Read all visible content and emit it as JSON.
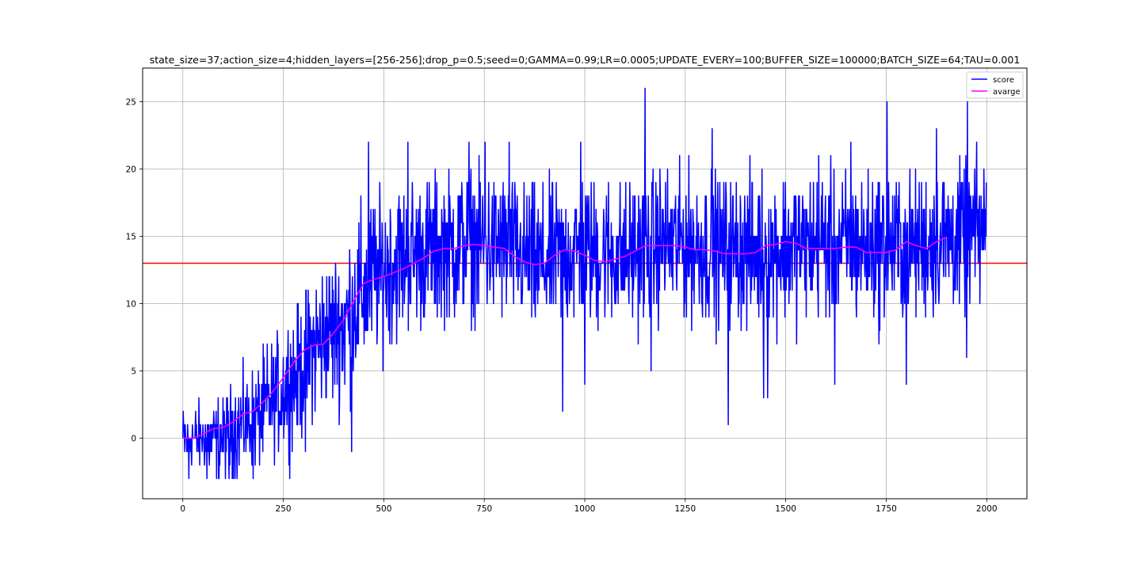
{
  "chart_data": {
    "type": "line",
    "title": "state_size=37;action_size=4;hidden_layers=[256-256];drop_p=0.5;seed=0;GAMMA=0.99;LR=0.0005;UPDATE_EVERY=100;BUFFER_SIZE=100000;BATCH_SIZE=64;TAU=0.001",
    "xlabel": "",
    "ylabel": "",
    "xlim": [
      -100,
      2100
    ],
    "ylim": [
      -4.5,
      27.5
    ],
    "x_ticks": [
      0,
      250,
      500,
      750,
      1000,
      1250,
      1500,
      1750,
      2000
    ],
    "y_ticks": [
      0,
      5,
      10,
      15,
      20,
      25
    ],
    "grid": true,
    "legend": {
      "placement": "top-right"
    },
    "threshold": {
      "y": 13,
      "color": "#ff0000"
    },
    "series": [
      {
        "name": "score",
        "color": "#0000ff",
        "x_start": 0,
        "x_end": 1999,
        "style": "noisy per-episode scores",
        "trend": [
          [
            0,
            0
          ],
          [
            100,
            0
          ],
          [
            200,
            2
          ],
          [
            280,
            4.5
          ],
          [
            330,
            7
          ],
          [
            400,
            8.5
          ],
          [
            450,
            11
          ],
          [
            500,
            12.5
          ],
          [
            560,
            13.5
          ],
          [
            700,
            14.5
          ],
          [
            800,
            14.3
          ],
          [
            880,
            13
          ],
          [
            1000,
            14
          ],
          [
            1100,
            13.5
          ],
          [
            1200,
            14.5
          ],
          [
            1400,
            14
          ],
          [
            1550,
            14.3
          ],
          [
            1700,
            14.3
          ],
          [
            1800,
            14.3
          ],
          [
            1950,
            15
          ],
          [
            1999,
            15.5
          ]
        ],
        "spread": [
          [
            0,
            1.5
          ],
          [
            200,
            3
          ],
          [
            350,
            4
          ],
          [
            450,
            4.5
          ],
          [
            600,
            4
          ],
          [
            2000,
            4
          ]
        ],
        "extremes": [
          [
            15,
            -3
          ],
          [
            60,
            -3
          ],
          [
            90,
            -3
          ],
          [
            115,
            -3
          ],
          [
            175,
            -3
          ],
          [
            305,
            -1
          ],
          [
            420,
            -1
          ],
          [
            462,
            22
          ],
          [
            560,
            22
          ],
          [
            712,
            22
          ],
          [
            752,
            22
          ],
          [
            812,
            22
          ],
          [
            945,
            2
          ],
          [
            990,
            22
          ],
          [
            1000,
            4
          ],
          [
            1150,
            26
          ],
          [
            1165,
            5
          ],
          [
            1317,
            23
          ],
          [
            1357,
            1
          ],
          [
            1445,
            3
          ],
          [
            1455,
            3
          ],
          [
            1582,
            21
          ],
          [
            1622,
            4
          ],
          [
            1662,
            22
          ],
          [
            1752,
            25
          ],
          [
            1800,
            4
          ],
          [
            1875,
            23
          ],
          [
            1950,
            6
          ],
          [
            1952,
            25
          ]
        ],
        "y_min": -3,
        "y_max": 26
      },
      {
        "name": "avarge",
        "color": "#ff00ff",
        "points": [
          [
            0,
            0
          ],
          [
            25,
            0
          ],
          [
            50,
            0.3
          ],
          [
            75,
            0.7
          ],
          [
            100,
            0.8
          ],
          [
            125,
            1.2
          ],
          [
            150,
            1.8
          ],
          [
            175,
            2
          ],
          [
            200,
            2.7
          ],
          [
            225,
            3.5
          ],
          [
            250,
            4.5
          ],
          [
            275,
            5.6
          ],
          [
            300,
            6.5
          ],
          [
            325,
            6.9
          ],
          [
            350,
            7
          ],
          [
            375,
            7.8
          ],
          [
            400,
            8.8
          ],
          [
            425,
            10.2
          ],
          [
            450,
            11.5
          ],
          [
            475,
            11.8
          ],
          [
            500,
            12
          ],
          [
            525,
            12.3
          ],
          [
            550,
            12.6
          ],
          [
            575,
            13
          ],
          [
            600,
            13.4
          ],
          [
            625,
            13.9
          ],
          [
            650,
            14.1
          ],
          [
            675,
            14.1
          ],
          [
            700,
            14.3
          ],
          [
            725,
            14.4
          ],
          [
            750,
            14.3
          ],
          [
            775,
            14.2
          ],
          [
            800,
            14.1
          ],
          [
            825,
            13.5
          ],
          [
            850,
            13.1
          ],
          [
            875,
            12.9
          ],
          [
            900,
            13
          ],
          [
            925,
            13.6
          ],
          [
            950,
            14
          ],
          [
            975,
            13.9
          ],
          [
            1000,
            13.6
          ],
          [
            1025,
            13.2
          ],
          [
            1050,
            13.1
          ],
          [
            1075,
            13.3
          ],
          [
            1100,
            13.5
          ],
          [
            1125,
            13.9
          ],
          [
            1150,
            14.3
          ],
          [
            1175,
            14.3
          ],
          [
            1200,
            14.3
          ],
          [
            1225,
            14.3
          ],
          [
            1250,
            14.2
          ],
          [
            1275,
            14
          ],
          [
            1300,
            14
          ],
          [
            1325,
            13.9
          ],
          [
            1350,
            13.7
          ],
          [
            1375,
            13.7
          ],
          [
            1400,
            13.7
          ],
          [
            1425,
            13.8
          ],
          [
            1450,
            14.3
          ],
          [
            1475,
            14.4
          ],
          [
            1500,
            14.6
          ],
          [
            1525,
            14.5
          ],
          [
            1550,
            14.1
          ],
          [
            1575,
            14.1
          ],
          [
            1600,
            14.1
          ],
          [
            1625,
            14.1
          ],
          [
            1650,
            14.2
          ],
          [
            1675,
            14.2
          ],
          [
            1700,
            13.8
          ],
          [
            1725,
            13.8
          ],
          [
            1750,
            13.8
          ],
          [
            1775,
            14
          ],
          [
            1800,
            14.6
          ],
          [
            1825,
            14.3
          ],
          [
            1850,
            14.1
          ],
          [
            1875,
            14.6
          ],
          [
            1900,
            14.9
          ]
        ]
      }
    ]
  }
}
